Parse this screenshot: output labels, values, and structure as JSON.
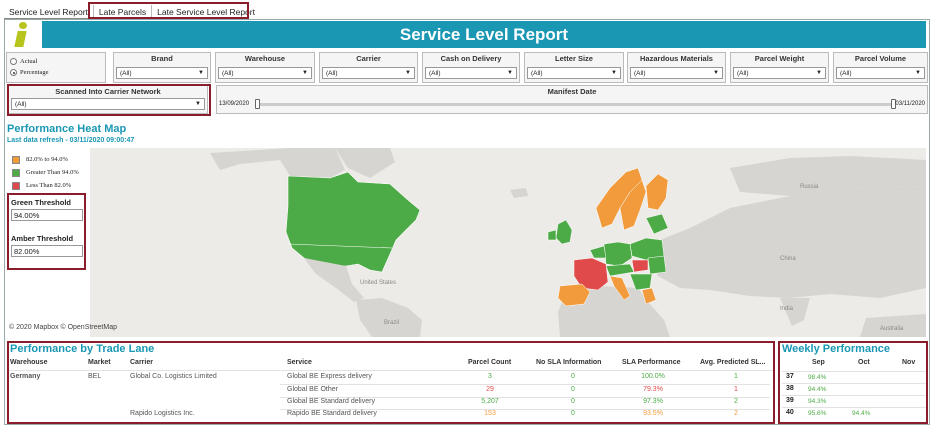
{
  "tabs": [
    {
      "label": "Service Level Report"
    },
    {
      "label": "Late Parcels"
    },
    {
      "label": "Late Service Level Report"
    }
  ],
  "header": {
    "title": "Service Level Report",
    "logo_letter": "i"
  },
  "mode": {
    "options": [
      "Actual",
      "Percentage"
    ],
    "selected": "Percentage"
  },
  "filters": [
    {
      "label": "Brand",
      "value": "(All)"
    },
    {
      "label": "Warehouse",
      "value": "(All)"
    },
    {
      "label": "Carrier",
      "value": "(All)"
    },
    {
      "label": "Cash on Delivery",
      "value": "(All)"
    },
    {
      "label": "Letter Size",
      "value": "(All)"
    },
    {
      "label": "Hazardous Materials",
      "value": "(All)"
    },
    {
      "label": "Parcel Weight",
      "value": "(All)"
    },
    {
      "label": "Parcel Volume",
      "value": "(All)"
    }
  ],
  "scanned": {
    "label": "Scanned Into Carrier Network",
    "value": "(All)"
  },
  "manifest": {
    "label": "Manifest Date",
    "start": "13/09/2020",
    "end": "03/11/2020"
  },
  "heatmap": {
    "title": "Performance Heat Map",
    "refresh": "Last data refresh - 03/11/2020 09:00:47",
    "legend": [
      {
        "label": "82.0% to 94.0%",
        "color": "#f29b3c"
      },
      {
        "label": "Greater Than 94.0%",
        "color": "#4dab47"
      },
      {
        "label": "Less Than 82.0%",
        "color": "#e04a4a"
      }
    ],
    "green_threshold": {
      "label": "Green Threshold",
      "value": "94.00%"
    },
    "amber_threshold": {
      "label": "Amber Threshold",
      "value": "82.00%"
    },
    "credit": "© 2020 Mapbox © OpenStreetMap",
    "map_labels": {
      "states": "United States",
      "russia": "Russia",
      "brazil": "Brazil",
      "australia": "Australia",
      "india": "India",
      "china": "China"
    }
  },
  "trade_lane": {
    "title": "Performance by Trade Lane",
    "columns": [
      "Warehouse",
      "Market",
      "Carrier",
      "Service",
      "Parcel Count",
      "No SLA Information",
      "SLA Performance",
      "Avg. Predicted SL..."
    ],
    "rows": [
      {
        "warehouse": "Germany",
        "market": "BEL",
        "carrier": "Global Co. Logistics Limited",
        "service": "Global BE Express delivery",
        "count": "3",
        "nosla": "0",
        "sla": "100.0%",
        "avg": "1",
        "count_color": "#4dab47",
        "sla_color": "#4dab47",
        "avg_color": "#4dab47"
      },
      {
        "warehouse": "",
        "market": "",
        "carrier": "",
        "service": "Global BE Other",
        "count": "29",
        "nosla": "0",
        "sla": "79.3%",
        "avg": "1",
        "count_color": "#e04a4a",
        "sla_color": "#e04a4a",
        "avg_color": "#e04a4a"
      },
      {
        "warehouse": "",
        "market": "",
        "carrier": "",
        "service": "Global BE Standard delivery",
        "count": "5,207",
        "nosla": "0",
        "sla": "97.3%",
        "avg": "2",
        "count_color": "#4dab47",
        "sla_color": "#4dab47",
        "avg_color": "#4dab47"
      },
      {
        "warehouse": "",
        "market": "",
        "carrier": "Rapido Logistics Inc.",
        "service": "Rapido BE Standard delivery",
        "count": "153",
        "nosla": "0",
        "sla": "93.5%",
        "avg": "2",
        "count_color": "#f29b3c",
        "sla_color": "#f29b3c",
        "avg_color": "#f29b3c"
      }
    ]
  },
  "weekly": {
    "title": "Weekly Performance",
    "months": [
      "Sep",
      "Oct",
      "Nov"
    ],
    "rows": [
      {
        "week": "37",
        "sep": "98.4%",
        "oct": "",
        "nov": ""
      },
      {
        "week": "38",
        "sep": "94.4%",
        "oct": "",
        "nov": ""
      },
      {
        "week": "39",
        "sep": "94.3%",
        "oct": "",
        "nov": ""
      },
      {
        "week": "40",
        "sep": "95.6%",
        "oct": "94.4%",
        "nov": ""
      }
    ]
  },
  "colors": {
    "accent": "#1a97b3",
    "highlight": "#8a1c2b",
    "green": "#4dab47",
    "amber": "#f29b3c",
    "red": "#e04a4a"
  }
}
